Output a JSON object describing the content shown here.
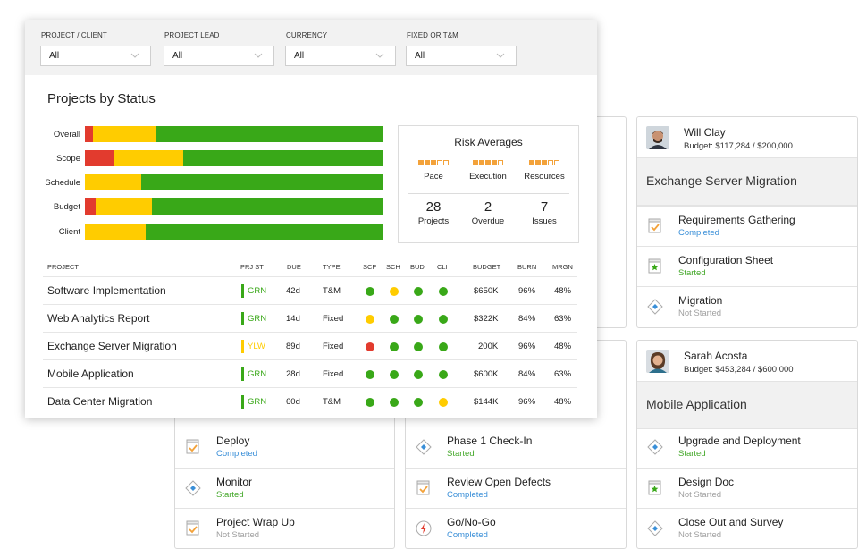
{
  "colors": {
    "green": "#39a818",
    "yellow": "#ffcc00",
    "red": "#e23b2e",
    "orange": "#f3a23a"
  },
  "filters": [
    {
      "label": "PROJECT / CLIENT",
      "value": "All",
      "icon": "chevron-down-icon"
    },
    {
      "label": "PROJECT LEAD",
      "value": "All",
      "icon": "chevron-down-icon"
    },
    {
      "label": "CURRENCY",
      "value": "All",
      "icon": "chevron-down-icon"
    },
    {
      "label": "FIXED OR T&M",
      "value": "All",
      "icon": "chevron-down-icon"
    }
  ],
  "status_chart": {
    "title": "Projects by Status",
    "rows": [
      {
        "label": "Overall",
        "red": 0.028,
        "yellow": 0.21,
        "green": 0.762
      },
      {
        "label": "Scope",
        "red": 0.095,
        "yellow": 0.235,
        "green": 0.67
      },
      {
        "label": "Schedule",
        "red": 0,
        "yellow": 0.19,
        "green": 0.81
      },
      {
        "label": "Budget",
        "red": 0.035,
        "yellow": 0.19,
        "green": 0.775
      },
      {
        "label": "Client",
        "red": 0,
        "yellow": 0.205,
        "green": 0.795
      }
    ]
  },
  "risk": {
    "title": "Risk Averages",
    "metrics": [
      {
        "label": "Pace",
        "filled": 3,
        "total": 5
      },
      {
        "label": "Execution",
        "filled": 4,
        "total": 5
      },
      {
        "label": "Resources",
        "filled": 3,
        "total": 5
      }
    ],
    "counts": [
      {
        "value": "28",
        "label": "Projects"
      },
      {
        "value": "2",
        "label": "Overdue"
      },
      {
        "value": "7",
        "label": "Issues"
      }
    ]
  },
  "table": {
    "headers": {
      "project": "PROJECT",
      "prjst": "PRJ ST",
      "due": "DUE",
      "type": "TYPE",
      "scp": "SCP",
      "sch": "SCH",
      "bud": "BUD",
      "cli": "CLI",
      "budget": "BUDGET",
      "burn": "BURN",
      "mrgn": "MRGN"
    },
    "rows": [
      {
        "name": "Software Implementation",
        "prjst": "GRN",
        "due": "42d",
        "type": "T&M",
        "dots": [
          "green",
          "yellow",
          "green",
          "green"
        ],
        "budget": "$650K",
        "burn": "96%",
        "mrgn": "48%"
      },
      {
        "name": "Web Analytics Report",
        "prjst": "GRN",
        "due": "14d",
        "type": "Fixed",
        "dots": [
          "yellow",
          "green",
          "green",
          "green"
        ],
        "budget": "$322K",
        "burn": "84%",
        "mrgn": "63%"
      },
      {
        "name": "Exchange Server Migration",
        "prjst": "YLW",
        "due": "89d",
        "type": "Fixed",
        "dots": [
          "red",
          "green",
          "green",
          "green"
        ],
        "budget": "200K",
        "burn": "96%",
        "mrgn": "48%"
      },
      {
        "name": "Mobile Application",
        "prjst": "GRN",
        "due": "28d",
        "type": "Fixed",
        "dots": [
          "green",
          "green",
          "green",
          "green"
        ],
        "budget": "$600K",
        "burn": "84%",
        "mrgn": "63%"
      },
      {
        "name": "Data Center Migration",
        "prjst": "GRN",
        "due": "60d",
        "type": "T&M",
        "dots": [
          "green",
          "green",
          "green",
          "yellow"
        ],
        "budget": "$144K",
        "burn": "96%",
        "mrgn": "48%"
      }
    ]
  },
  "cards_top": {
    "right": {
      "person": "Will Clay",
      "budget": "Budget: $117,284 / $200,000",
      "project": "Exchange Server Migration",
      "tasks": [
        {
          "name": "Requirements Gathering",
          "status": "Completed",
          "icon": "checklist-icon"
        },
        {
          "name": "Configuration Sheet",
          "status": "Started",
          "icon": "star-doc-icon"
        },
        {
          "name": "Migration",
          "status": "Not Started",
          "icon": "diamond-icon"
        }
      ]
    }
  },
  "cards_bottom": {
    "right": {
      "person": "Sarah Acosta",
      "budget": "Budget: $453,284 / $600,000",
      "project": "Mobile Application",
      "tasks": [
        {
          "name": "Upgrade and Deployment",
          "status": "Started",
          "icon": "diamond-icon"
        },
        {
          "name": "Design Doc",
          "status": "Not Started",
          "icon": "star-doc-icon"
        },
        {
          "name": "Close Out and Survey",
          "status": "Not Started",
          "icon": "diamond-icon"
        }
      ]
    },
    "left": {
      "tasks": [
        {
          "name": "Deploy",
          "status": "Completed",
          "icon": "checklist-icon"
        },
        {
          "name": "Monitor",
          "status": "Started",
          "icon": "diamond-icon"
        },
        {
          "name": "Project Wrap Up",
          "status": "Not Started",
          "icon": "checklist-icon"
        }
      ]
    },
    "middle": {
      "tasks": [
        {
          "name": "Phase 1 Check-In",
          "status": "Started",
          "icon": "diamond-icon"
        },
        {
          "name": "Review Open Defects",
          "status": "Completed",
          "icon": "checklist-icon"
        },
        {
          "name": "Go/No-Go",
          "status": "Completed",
          "icon": "bolt-icon"
        }
      ]
    }
  }
}
